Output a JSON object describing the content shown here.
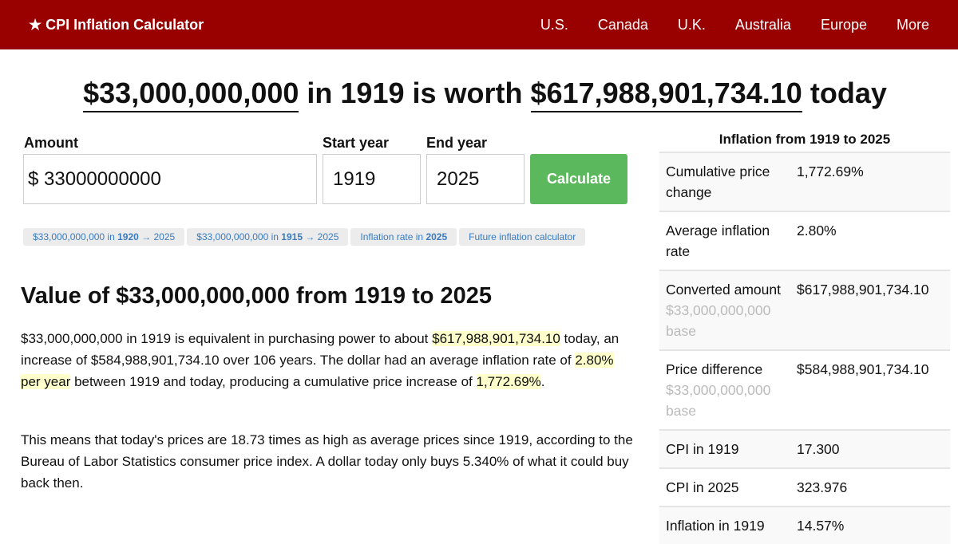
{
  "nav": {
    "brand": "★ CPI Inflation Calculator",
    "links": [
      "U.S.",
      "Canada",
      "U.K.",
      "Australia",
      "Europe",
      "More"
    ]
  },
  "headline": {
    "amount": "$33,000,000,000",
    "mid": " in 1919 is worth ",
    "result": "$617,988,901,734.10",
    "end": " today"
  },
  "form": {
    "amount_label": "Amount",
    "amount_prefix": "$",
    "amount_value": "33000000000",
    "start_label": "Start year",
    "start_value": "1919",
    "end_label": "End year",
    "end_value": "2025",
    "calculate": "Calculate"
  },
  "chips": [
    {
      "pre": "$33,000,000,000 in ",
      "bold": "1920",
      "post": " → 2025"
    },
    {
      "pre": "$33,000,000,000 in ",
      "bold": "1915",
      "post": " → 2025"
    },
    {
      "pre": "Inflation rate in ",
      "bold": "2025",
      "post": ""
    },
    {
      "pre": "Future inflation calculator",
      "bold": "",
      "post": ""
    }
  ],
  "section": {
    "title": "Value of $33,000,000,000 from 1919 to 2025",
    "p1": {
      "a": "$33,000,000,000 in 1919 is equivalent in purchasing power to about ",
      "h1": "$617,988,901,734.10",
      "b": " today, an increase of $584,988,901,734.10 over 106 years. The dollar had an average inflation rate of ",
      "h2": "2.80% per year",
      "c": " between 1919 and today, producing a cumulative price increase of ",
      "h3": "1,772.69%",
      "d": "."
    },
    "p2": "This means that today's prices are 18.73 times as high as average prices since 1919, according to the Bureau of Labor Statistics consumer price index. A dollar today only buys 5.340% of what it could buy back then."
  },
  "sidebar": {
    "title": "Inflation from 1919 to 2025",
    "rows": [
      {
        "k": "Cumulative price change",
        "v": "1,772.69%",
        "sub": ""
      },
      {
        "k": "Average inflation rate",
        "v": "2.80%",
        "sub": ""
      },
      {
        "k": "Converted amount",
        "v": "$617,988,901,734.10",
        "sub": "$33,000,000,000 base"
      },
      {
        "k": "Price difference",
        "v": "$584,988,901,734.10",
        "sub": "$33,000,000,000 base"
      },
      {
        "k": "CPI in 1919",
        "v": "17.300",
        "sub": ""
      },
      {
        "k": "CPI in 2025",
        "v": "323.976",
        "sub": ""
      },
      {
        "k": "Inflation in 1919",
        "v": "14.57%",
        "sub": ""
      }
    ]
  }
}
